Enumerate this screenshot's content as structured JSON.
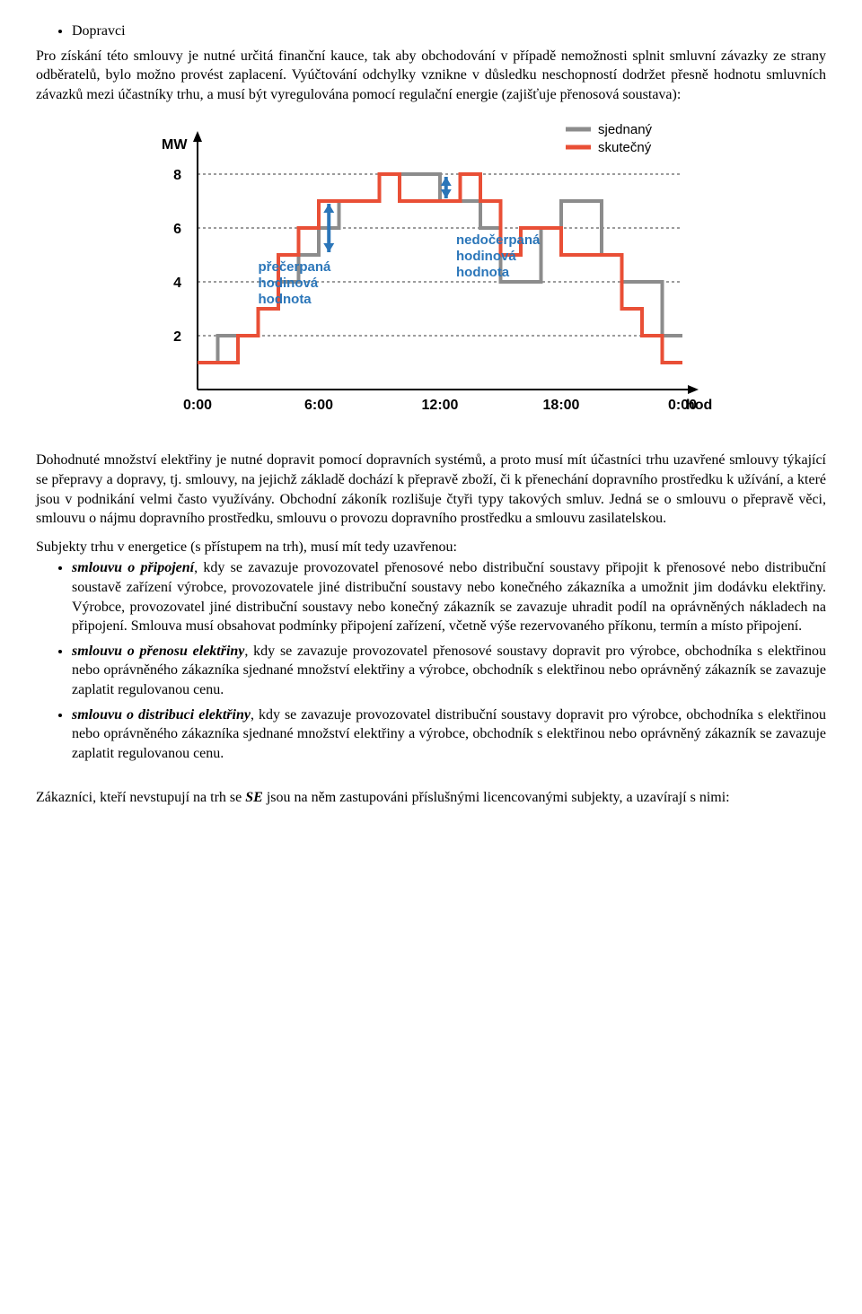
{
  "bullets_top": [
    "Dopravci"
  ],
  "para_top_1": "Pro získání této smlouvy je nutné určitá finanční kauce, tak aby obchodování v případě nemožnosti splnit smluvní závazky ze strany odběratelů, bylo možno provést zaplacení. Vyúčtování odchylky vznikne v důsledku neschopností dodržet přesně hodnotu smluvních závazků mezi účastníky trhu, a musí být vyregulována pomocí regulační energie (zajišťuje přenosová soustava):",
  "chart": {
    "y_label": "MW",
    "x_label": "hod",
    "y_ticks": [
      2,
      4,
      6,
      8
    ],
    "x_ticks": [
      "0:00",
      "6:00",
      "12:00",
      "18:00",
      "0:00"
    ],
    "legend": {
      "sjednany": "sjednaný",
      "skutecny": "skutečný"
    },
    "colors": {
      "sjednany": "#8c8c8c",
      "skutecny": "#e94f36",
      "arrow": "#2b76b9",
      "grid": "#3a3a3a",
      "axis": "#000000"
    },
    "line_width": {
      "series": 4,
      "arrow": 4,
      "grid": 1
    },
    "annot1": {
      "l1": "přečerpaná",
      "l2": "hodinová",
      "l3": "hodnota"
    },
    "annot2": {
      "l1": "nedočerpaná",
      "l2": "hodinová",
      "l3": "hodnota"
    },
    "sjednany_points_mw": [
      [
        0,
        1
      ],
      [
        1,
        1
      ],
      [
        1,
        2
      ],
      [
        3,
        2
      ],
      [
        3,
        3
      ],
      [
        4,
        3
      ],
      [
        4,
        4
      ],
      [
        5,
        4
      ],
      [
        5,
        5
      ],
      [
        6,
        5
      ],
      [
        6,
        6
      ],
      [
        7,
        6
      ],
      [
        7,
        7
      ],
      [
        9,
        7
      ],
      [
        9,
        8
      ],
      [
        12,
        8
      ],
      [
        12,
        7
      ],
      [
        14,
        7
      ],
      [
        14,
        6
      ],
      [
        15,
        6
      ],
      [
        15,
        4
      ],
      [
        17,
        4
      ],
      [
        17,
        6
      ],
      [
        18,
        6
      ],
      [
        18,
        7
      ],
      [
        20,
        7
      ],
      [
        20,
        5
      ],
      [
        21,
        5
      ],
      [
        21,
        4
      ],
      [
        23,
        4
      ],
      [
        23,
        2
      ],
      [
        24,
        2
      ]
    ],
    "skutecny_points_mw": [
      [
        0,
        1
      ],
      [
        2,
        1
      ],
      [
        2,
        2
      ],
      [
        3,
        2
      ],
      [
        3,
        3
      ],
      [
        4,
        3
      ],
      [
        4,
        5
      ],
      [
        5,
        5
      ],
      [
        5,
        6
      ],
      [
        6,
        6
      ],
      [
        6,
        7
      ],
      [
        9,
        7
      ],
      [
        9,
        8
      ],
      [
        10,
        8
      ],
      [
        10,
        7
      ],
      [
        13,
        7
      ],
      [
        13,
        8
      ],
      [
        14,
        8
      ],
      [
        14,
        7
      ],
      [
        15,
        7
      ],
      [
        15,
        5
      ],
      [
        16,
        5
      ],
      [
        16,
        6
      ],
      [
        18,
        6
      ],
      [
        18,
        5
      ],
      [
        21,
        5
      ],
      [
        21,
        3
      ],
      [
        22,
        3
      ],
      [
        22,
        2
      ],
      [
        23,
        2
      ],
      [
        23,
        1
      ],
      [
        24,
        1
      ]
    ],
    "arrow1_x_hour": 6.5,
    "arrow1_y_from_mw": 5.1,
    "arrow1_y_to_mw": 6.9,
    "arrow2_x_hour": 12.3,
    "arrow2_y_from_mw": 7.1,
    "arrow2_y_to_mw": 7.9
  },
  "para_mid_1": "Dohodnuté množství elektřiny je nutné dopravit pomocí dopravních systémů, a proto musí mít účastníci trhu uzavřené smlouvy týkající se přepravy a dopravy, tj. smlouvy, na jejichž základě dochází k přepravě zboží, či k přenechání dopravního prostředku k užívání, a které jsou v podnikání velmi často využívány. Obchodní zákoník rozlišuje čtyři typy takových smluv. Jedná se o smlouvu o přepravě věci, smlouvu o nájmu dopravního prostředku, smlouvu o provozu dopravního prostředku a smlouvu zasilatelskou.",
  "para_mid_2": "Subjekty trhu v energetice (s přístupem na trh), musí mít tedy uzavřenou:",
  "items": [
    {
      "lead": "smlouvu o připojení",
      "rest": ", kdy se zavazuje provozovatel přenosové nebo distribuční soustavy připojit k přenosové nebo distribuční soustavě zařízení výrobce, provozovatele jiné distribuční soustavy nebo konečného zákazníka a umožnit jim dodávku elektřiny. Výrobce, provozovatel jiné distribuční soustavy nebo konečný zákazník se zavazuje uhradit podíl na oprávněných nákladech na připojení. Smlouva musí obsahovat podmínky připojení zařízení, včetně výše rezervovaného příkonu, termín a místo připojení."
    },
    {
      "lead": "smlouvu o přenosu elektřiny",
      "rest": ", kdy se zavazuje provozovatel přenosové soustavy dopravit pro výrobce, obchodníka s elektřinou nebo oprávněného zákazníka sjednané množství elektřiny a výrobce, obchodník s elektřinou nebo oprávněný zákazník se zavazuje zaplatit regulovanou cenu."
    },
    {
      "lead": "smlouvu o distribuci elektřiny",
      "rest": ", kdy se zavazuje provozovatel distribuční soustavy dopravit pro výrobce, obchodníka s elektřinou nebo oprávněného zákazníka sjednané množství elektřiny a výrobce, obchodník s elektřinou nebo oprávněný zákazník se zavazuje zaplatit regulovanou cenu."
    }
  ],
  "para_bottom_pre": "Zákazníci, kteří nevstupují na trh se ",
  "para_bottom_se": "SE",
  "para_bottom_post": " jsou na něm zastupováni příslušnými licencovanými subjekty, a uzavírají s nimi:"
}
